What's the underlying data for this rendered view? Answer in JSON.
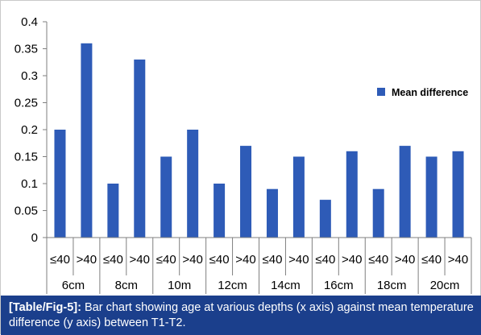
{
  "chart_data": {
    "type": "bar",
    "groups": [
      "6cm",
      "8cm",
      "10m",
      "12cm",
      "14cm",
      "16cm",
      "18cm",
      "20cm"
    ],
    "subcategories": [
      "≤40",
      ">40"
    ],
    "categories": [
      "≤40",
      ">40",
      "≤40",
      ">40",
      "≤40",
      ">40",
      "≤40",
      ">40",
      "≤40",
      ">40",
      "≤40",
      ">40",
      "≤40",
      ">40",
      "≤40",
      ">40"
    ],
    "series": [
      {
        "name": "Mean difference",
        "values": [
          0.2,
          0.36,
          0.1,
          0.33,
          0.15,
          0.2,
          0.1,
          0.17,
          0.09,
          0.15,
          0.07,
          0.16,
          0.09,
          0.17,
          0.15,
          0.16
        ]
      }
    ],
    "yticks": [
      "0",
      "0.05",
      "0.1",
      "0.15",
      "0.2",
      "0.25",
      "0.3",
      "0.35",
      "0.4"
    ],
    "ylim": [
      0,
      0.4
    ],
    "title": "",
    "xlabel": "",
    "ylabel": "",
    "grid": false,
    "legend": "right",
    "bar_color": "#2e5bb7"
  },
  "caption": {
    "tag": "[Table/Fig-5]:",
    "text": " Bar chart showing age at various depths (x axis) against mean temperature difference (y axis) between T1-T2.",
    "background": "#1b3f8c"
  }
}
